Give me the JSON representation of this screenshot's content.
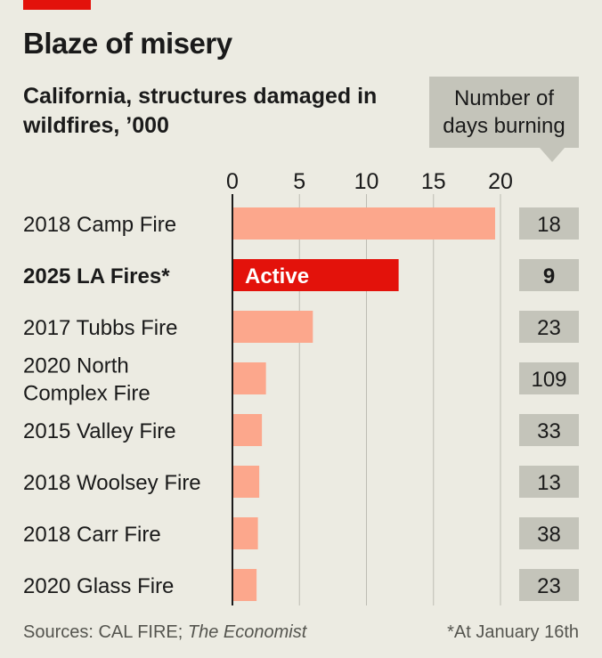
{
  "header": {
    "title": "Blaze of misery",
    "subtitle": "California, structures damaged in wildfires, ’000",
    "days_label": "Number of days burning"
  },
  "footer": {
    "sources_prefix": "Sources: CAL FIRE; ",
    "sources_italic": "The Economist",
    "footnote": "*At January 16th"
  },
  "colors": {
    "bar": "#fca78c",
    "highlight": "#e3120b",
    "days_box": "#c4c4ba",
    "axis": "#1a1a1a",
    "grid": "#bdbcb3"
  },
  "chart_data": {
    "type": "bar",
    "orientation": "horizontal",
    "title": "Blaze of misery",
    "subtitle": "California, structures damaged in wildfires, ’000",
    "xlim": [
      0,
      20
    ],
    "xticks": [
      0,
      5,
      10,
      15,
      20
    ],
    "grid": true,
    "categories": [
      "2018 Camp Fire",
      "2025 LA Fires*",
      "2017 Tubbs Fire",
      "2020 North Complex Fire",
      "2015 Valley Fire",
      "2018 Woolsey Fire",
      "2018 Carr Fire",
      "2020 Glass Fire"
    ],
    "category_lines": [
      [
        "2018 Camp Fire"
      ],
      [
        "2025 LA Fires*"
      ],
      [
        "2017 Tubbs Fire"
      ],
      [
        "2020 North",
        "Complex Fire"
      ],
      [
        "2015 Valley Fire"
      ],
      [
        "2018 Woolsey Fire"
      ],
      [
        "2018 Carr Fire"
      ],
      [
        "2020 Glass Fire"
      ]
    ],
    "values": [
      19.6,
      12.4,
      6.0,
      2.5,
      2.2,
      2.0,
      1.9,
      1.8
    ],
    "days_burning": [
      18,
      9,
      23,
      109,
      33,
      13,
      38,
      23
    ],
    "highlight_index": 1,
    "highlight_label": "Active"
  }
}
